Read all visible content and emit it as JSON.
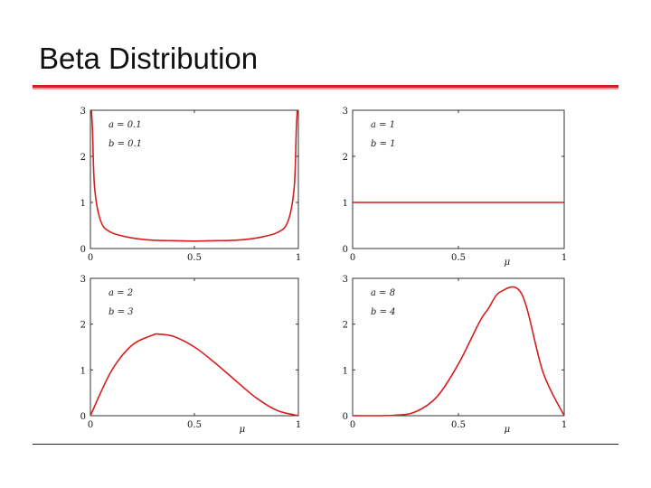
{
  "slide": {
    "title": "Beta Distribution"
  },
  "colors": {
    "curve": "#d61e1e",
    "accent_rule": "#d41f1f",
    "axis": "#222222"
  },
  "chart_data": [
    {
      "type": "line",
      "xlabel": "",
      "ylabel": "",
      "xlim": [
        0,
        1
      ],
      "ylim": [
        0,
        3
      ],
      "xticks": [
        "0",
        "0.5",
        "1"
      ],
      "yticks": [
        "0",
        "1",
        "2",
        "3"
      ],
      "params": {
        "a": 0.1,
        "b": 0.1
      },
      "annotations": [
        "a = 0.1",
        "b = 0.1"
      ],
      "series": [
        {
          "x": [
            0.005,
            0.01,
            0.02,
            0.05,
            0.1,
            0.2,
            0.3,
            0.4,
            0.5,
            0.6,
            0.7,
            0.8,
            0.9,
            0.95,
            0.98,
            0.99,
            0.995
          ],
          "y": [
            3.0,
            2.57,
            1.33,
            0.59,
            0.35,
            0.23,
            0.18,
            0.17,
            0.16,
            0.17,
            0.18,
            0.23,
            0.35,
            0.59,
            1.33,
            2.57,
            3.0
          ]
        }
      ]
    },
    {
      "type": "line",
      "xlabel": "μ",
      "ylabel": "",
      "xlim": [
        0,
        1
      ],
      "ylim": [
        0,
        3
      ],
      "xticks": [
        "0",
        "0.5",
        "1"
      ],
      "yticks": [
        "0",
        "1",
        "2",
        "3"
      ],
      "params": {
        "a": 1,
        "b": 1
      },
      "annotations": [
        "a = 1",
        "b = 1"
      ],
      "series": [
        {
          "x": [
            0,
            0.25,
            0.5,
            0.75,
            1
          ],
          "y": [
            1,
            1,
            1,
            1,
            1
          ]
        }
      ]
    },
    {
      "type": "line",
      "xlabel": "μ",
      "ylabel": "",
      "xlim": [
        0,
        1
      ],
      "ylim": [
        0,
        3
      ],
      "xticks": [
        "0",
        "0.5",
        "1"
      ],
      "yticks": [
        "0",
        "1",
        "2",
        "3"
      ],
      "params": {
        "a": 2,
        "b": 3
      },
      "annotations": [
        "a = 2",
        "b = 3"
      ],
      "series": [
        {
          "x": [
            0,
            0.1,
            0.2,
            0.3,
            0.33,
            0.4,
            0.5,
            0.6,
            0.7,
            0.8,
            0.9,
            1
          ],
          "y": [
            0,
            0.97,
            1.54,
            1.76,
            1.78,
            1.73,
            1.5,
            1.15,
            0.76,
            0.38,
            0.11,
            0
          ]
        }
      ]
    },
    {
      "type": "line",
      "xlabel": "μ",
      "ylabel": "",
      "xlim": [
        0,
        1
      ],
      "ylim": [
        0,
        3
      ],
      "xticks": [
        "0",
        "0.5",
        "1"
      ],
      "yticks": [
        "0",
        "1",
        "2",
        "3"
      ],
      "params": {
        "a": 8,
        "b": 4
      },
      "annotations": [
        "a = 8",
        "b = 4"
      ],
      "series": [
        {
          "x": [
            0,
            0.2,
            0.3,
            0.4,
            0.5,
            0.6,
            0.64,
            0.7,
            0.8,
            0.9,
            1
          ],
          "y": [
            0,
            0.01,
            0.09,
            0.42,
            1.13,
            2.05,
            2.33,
            2.71,
            2.65,
            0.95,
            0
          ]
        }
      ]
    }
  ]
}
